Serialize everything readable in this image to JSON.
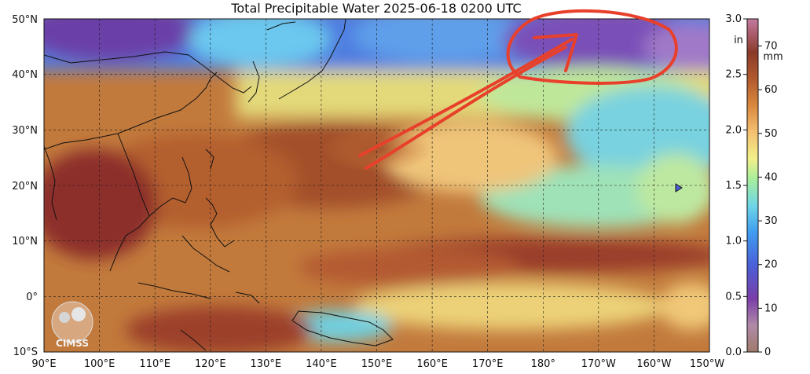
{
  "title": "Total Precipitable Water  2025-06-18 0200 UTC",
  "logo_text": "CIMSS",
  "map": {
    "lon_ticks": [
      "90°E",
      "100°E",
      "110°E",
      "120°E",
      "130°E",
      "140°E",
      "150°E",
      "160°E",
      "170°E",
      "180°",
      "170°W",
      "160°W",
      "150°W"
    ],
    "lat_ticks": [
      "50°N",
      "40°N",
      "30°N",
      "20°N",
      "10°N",
      "0°",
      "10°S"
    ],
    "lon_range": [
      90,
      210
    ],
    "lat_range": [
      -10,
      50
    ]
  },
  "colorbar": {
    "in_label": "in",
    "mm_label": "mm",
    "in_ticks": [
      "3.0",
      "2.5",
      "2.0",
      "1.5",
      "1.0",
      "0.5",
      "0.0"
    ],
    "mm_ticks": [
      "70",
      "60",
      "50",
      "40",
      "30",
      "20",
      "10",
      "0"
    ],
    "in_values": [
      3.0,
      2.5,
      2.0,
      1.5,
      1.0,
      0.5,
      0.0
    ],
    "mm_values": [
      70,
      60,
      50,
      40,
      30,
      20,
      10,
      0
    ],
    "mm_range": [
      0,
      76.2
    ]
  },
  "colors": {
    "annotation": "#e8402a",
    "grid": "#1a1a1a"
  }
}
